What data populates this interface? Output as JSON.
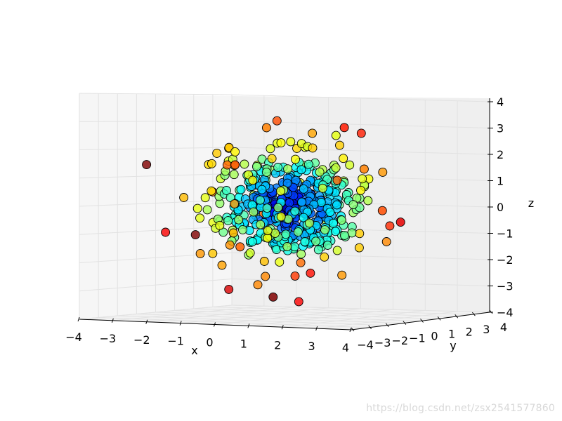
{
  "chart_data": {
    "type": "scatter",
    "projection": "3d",
    "title": "",
    "xlabel": "x",
    "ylabel": "y",
    "zlabel": "z",
    "xlim": [
      -4,
      4
    ],
    "ylim": [
      -4,
      4
    ],
    "zlim": [
      -4,
      4
    ],
    "xticks": [
      "−4",
      "−3",
      "−2",
      "−1",
      "0",
      "1",
      "2",
      "3",
      "4"
    ],
    "yticks": [
      "−4",
      "−3",
      "−2",
      "−1",
      "0",
      "1",
      "2",
      "3",
      "4"
    ],
    "zticks": [
      "4",
      "3",
      "2",
      "1",
      "0",
      "−1",
      "−2",
      "−3",
      "−4"
    ],
    "grid": true,
    "colormap": "jet",
    "marker_edge_color": "#000000",
    "points_visible": [
      {
        "x": -3.2,
        "z": 1.5,
        "c": 0.8
      },
      {
        "x": -1.3,
        "z": 2.9,
        "c": 0.75
      },
      {
        "x": 3.4,
        "z": 3.0,
        "c": 0.85
      },
      {
        "x": 2.9,
        "z": 2.7,
        "c": 0.6
      },
      {
        "x": 4.6,
        "z": 1.5,
        "c": 0.75
      },
      {
        "x": 5.7,
        "z": 0.0,
        "c": 0.8
      },
      {
        "x": 6.8,
        "z": -0.4,
        "c": 0.9
      },
      {
        "x": -3.3,
        "z": -1.0,
        "c": 0.7
      },
      {
        "x": -2.9,
        "z": -1.5,
        "c": 0.78
      },
      {
        "x": -0.9,
        "z": -3.3,
        "c": 1.0
      }
    ]
  },
  "watermark": "https://blog.csdn.net/zsx2541577860"
}
